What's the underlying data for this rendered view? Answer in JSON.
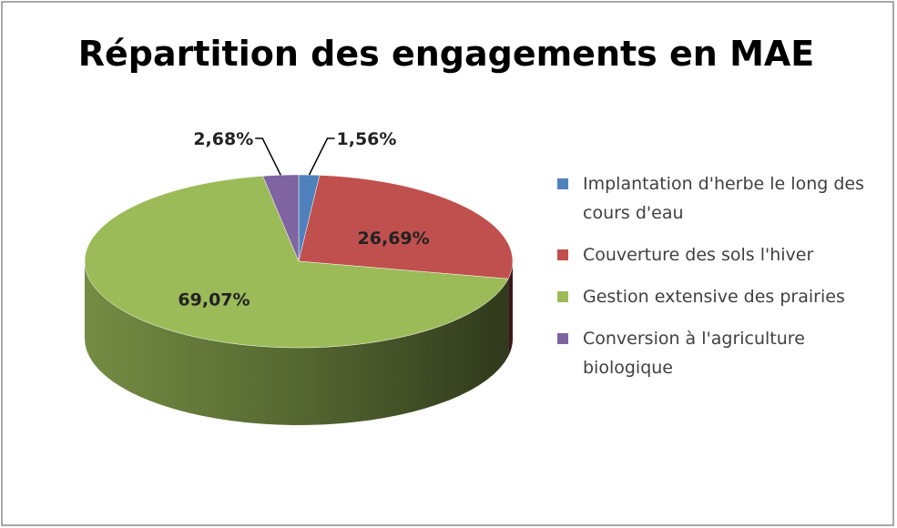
{
  "chart_data": {
    "type": "pie",
    "title": "Répartition des engagements en MAE",
    "categories": [
      "Implantation d'herbe le long des cours d'eau",
      "Couverture des sols l'hiver",
      "Gestion extensive des prairies",
      "Conversion à l'agriculture biologique"
    ],
    "values": [
      1.56,
      26.69,
      69.07,
      2.68
    ],
    "value_labels": [
      "1,56%",
      "26,69%",
      "69,07%",
      "2,68%"
    ],
    "colors": [
      "#4f81bd",
      "#c0504d",
      "#9bbb59",
      "#8064a2"
    ],
    "legend": "right"
  }
}
